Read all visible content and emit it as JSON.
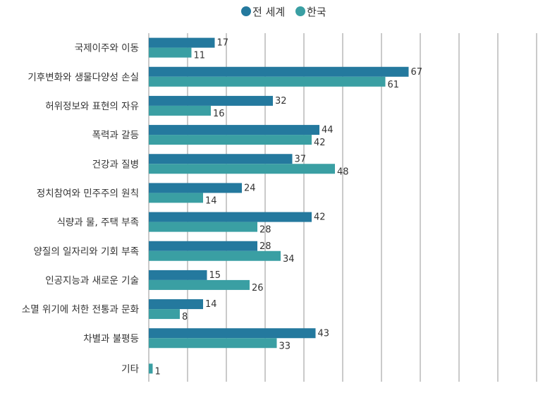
{
  "chart_data": {
    "type": "bar",
    "orientation": "horizontal",
    "title": "",
    "xlabel": "",
    "ylabel": "",
    "xlim": [
      0,
      100
    ],
    "grid": true,
    "legend_position": "top-center",
    "categories": [
      "국제이주와 이동",
      "기후변화와 생물다양성 손실",
      "허위정보와 표현의 자유",
      "폭력과 갈등",
      "건강과 질병",
      "정치참여와 민주주의 원칙",
      "식량과 물, 주택 부족",
      "양질의 일자리와 기회 부족",
      "인공지능과 새로운 기술",
      "소멸 위기에 처한 전통과 문화",
      "차별과 불평등",
      "기타"
    ],
    "series": [
      {
        "name": "전 세계",
        "color": "#24799e",
        "values": [
          17,
          67,
          32,
          44,
          37,
          24,
          42,
          28,
          15,
          14,
          43,
          null
        ]
      },
      {
        "name": "한국",
        "color": "#3a9fa3",
        "values": [
          11,
          61,
          16,
          42,
          48,
          14,
          28,
          34,
          26,
          8,
          33,
          1
        ]
      }
    ]
  }
}
